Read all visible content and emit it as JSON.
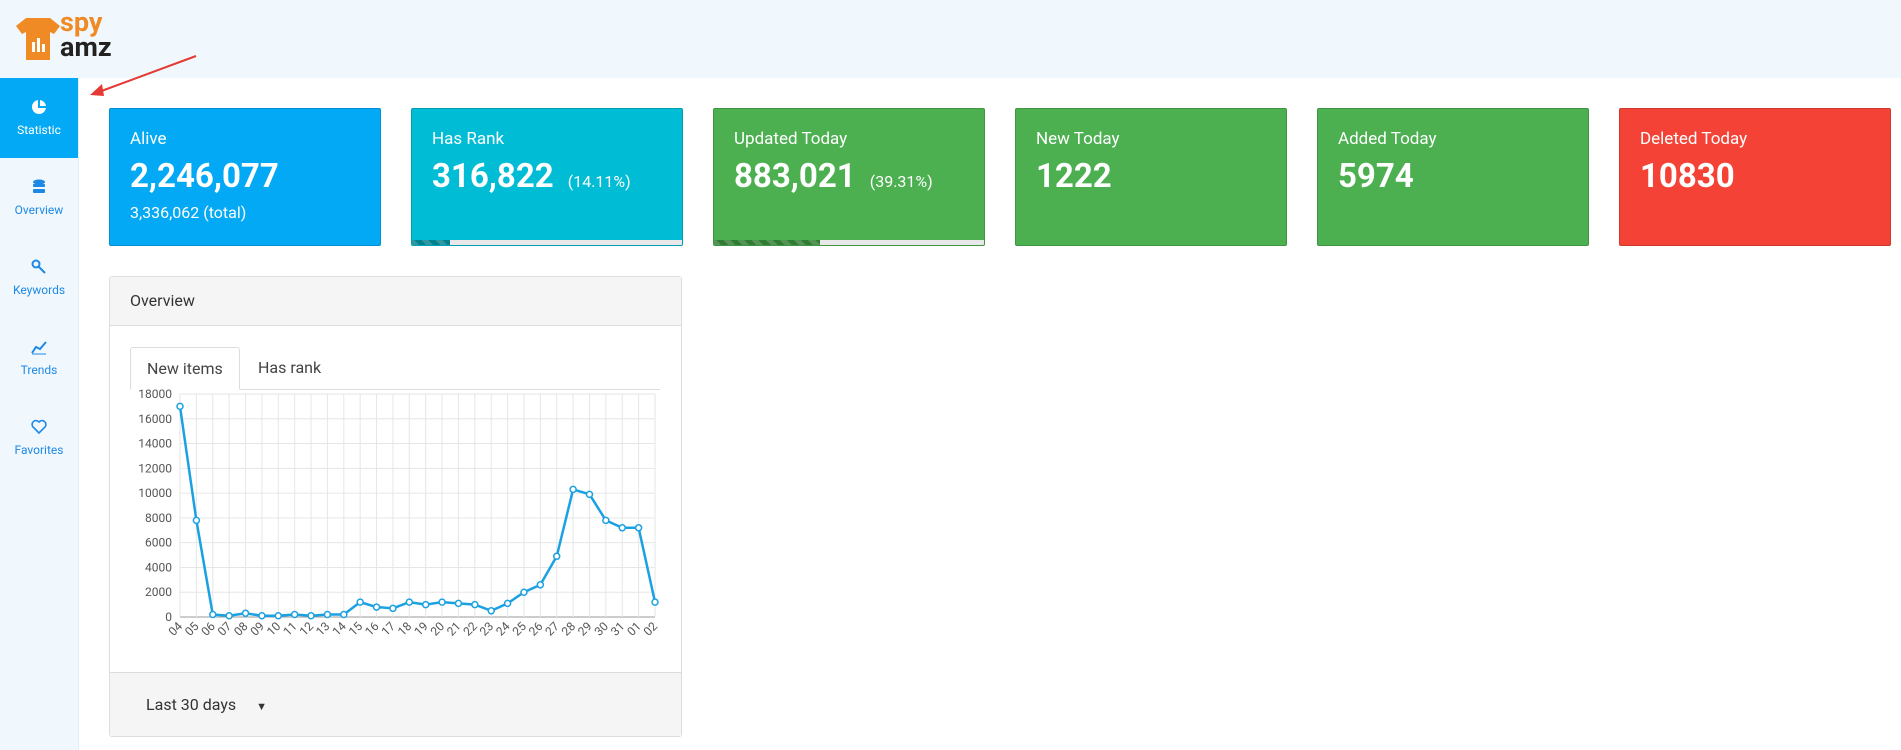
{
  "header": {
    "logo_top": "spy",
    "logo_bottom": "amz"
  },
  "sidebar": {
    "items": [
      "Statistic",
      "Overview",
      "Keywords",
      "Trends",
      "Favorites"
    ]
  },
  "cards": [
    {
      "title": "Alive",
      "value": "2,246,077",
      "sub": "3,336,062 (total)",
      "color": "#03a9f4"
    },
    {
      "title": "Has Rank",
      "value": "316,822",
      "percent": {
        "value": 14.11,
        "label": "(14.11%)"
      },
      "color": "#00bcd4",
      "bar_color": "#00838f"
    },
    {
      "title": "Updated Today",
      "value": "883,021",
      "percent": {
        "value": 39.31,
        "label": "(39.31%)"
      },
      "color": "#4caf50",
      "bar_color": "#2e7d32"
    },
    {
      "title": "New Today",
      "value": "1222",
      "color": "#4caf50"
    },
    {
      "title": "Added Today",
      "value": "5974",
      "color": "#4caf50"
    },
    {
      "title": "Deleted Today",
      "value": "10830",
      "color": "#f44336"
    }
  ],
  "panel": {
    "title": "Overview",
    "tabs": [
      "New items",
      "Has rank"
    ],
    "footer": "Last 30 days"
  },
  "chart_data": {
    "type": "line",
    "color": "#1ba1e2",
    "categories": [
      "04",
      "05",
      "06",
      "07",
      "08",
      "09",
      "10",
      "11",
      "12",
      "13",
      "14",
      "15",
      "16",
      "17",
      "18",
      "19",
      "20",
      "21",
      "22",
      "23",
      "24",
      "25",
      "26",
      "27",
      "28",
      "29",
      "30",
      "31",
      "01",
      "02"
    ],
    "values": [
      17000,
      7800,
      200,
      100,
      300,
      100,
      100,
      200,
      100,
      200,
      200,
      1200,
      800,
      700,
      1200,
      1000,
      1200,
      1100,
      1000,
      500,
      1100,
      2000,
      2600,
      4900,
      10300,
      9900,
      7800,
      7200,
      7200,
      1200
    ],
    "ylim": [
      0,
      18000
    ],
    "yticks": [
      0,
      2000,
      4000,
      6000,
      8000,
      10000,
      12000,
      14000,
      16000,
      18000
    ],
    "grid": true
  }
}
